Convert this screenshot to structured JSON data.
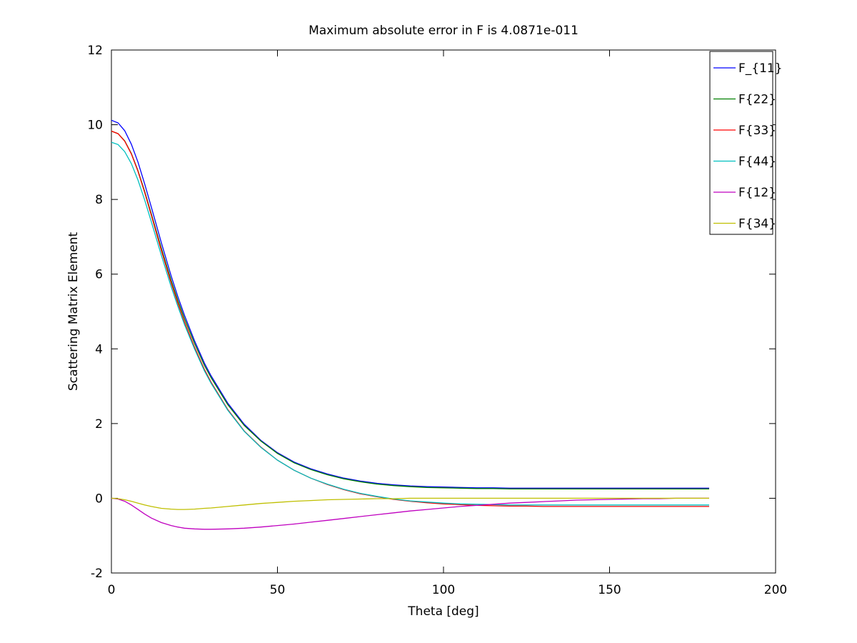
{
  "chart_data": {
    "type": "line",
    "title": "Maximum absolute error in F is 4.0871e-011",
    "xlabel": "Theta [deg]",
    "ylabel": "Scattering Matrix Element",
    "xlim": [
      0,
      200
    ],
    "ylim": [
      -2,
      12
    ],
    "xticks": [
      0,
      50,
      100,
      150,
      200
    ],
    "yticks": [
      -2,
      0,
      2,
      4,
      6,
      8,
      10,
      12
    ],
    "grid": false,
    "legend_position": "top-right",
    "x": [
      0,
      2,
      4,
      6,
      8,
      10,
      12,
      15,
      18,
      20,
      22,
      25,
      28,
      30,
      35,
      40,
      45,
      50,
      55,
      60,
      65,
      70,
      75,
      80,
      85,
      90,
      95,
      100,
      105,
      110,
      115,
      120,
      125,
      130,
      135,
      140,
      145,
      150,
      155,
      160,
      165,
      170,
      175,
      180
    ],
    "series": [
      {
        "name": "F_{11}",
        "color": "#0000ff",
        "values": [
          10.12,
          10.05,
          9.84,
          9.48,
          9.0,
          8.42,
          7.8,
          6.85,
          5.95,
          5.4,
          4.9,
          4.22,
          3.62,
          3.28,
          2.55,
          1.98,
          1.55,
          1.22,
          0.97,
          0.79,
          0.65,
          0.54,
          0.46,
          0.4,
          0.36,
          0.33,
          0.31,
          0.3,
          0.29,
          0.28,
          0.28,
          0.27,
          0.27,
          0.27,
          0.27,
          0.27,
          0.27,
          0.27,
          0.27,
          0.27,
          0.27,
          0.27,
          0.27,
          0.27
        ]
      },
      {
        "name": "F{22}",
        "color": "#008000",
        "values": [
          9.83,
          9.76,
          9.57,
          9.23,
          8.77,
          8.22,
          7.62,
          6.7,
          5.83,
          5.3,
          4.81,
          4.15,
          3.56,
          3.23,
          2.51,
          1.95,
          1.53,
          1.2,
          0.95,
          0.77,
          0.63,
          0.52,
          0.44,
          0.38,
          0.34,
          0.31,
          0.29,
          0.28,
          0.27,
          0.26,
          0.26,
          0.25,
          0.25,
          0.25,
          0.25,
          0.25,
          0.25,
          0.25,
          0.25,
          0.25,
          0.25,
          0.25,
          0.25,
          0.25
        ]
      },
      {
        "name": "F{33}",
        "color": "#ff0000",
        "values": [
          9.83,
          9.76,
          9.56,
          9.22,
          8.75,
          8.19,
          7.58,
          6.64,
          5.76,
          5.22,
          4.72,
          4.05,
          3.45,
          3.11,
          2.38,
          1.8,
          1.37,
          1.02,
          0.75,
          0.54,
          0.37,
          0.23,
          0.12,
          0.04,
          -0.03,
          -0.08,
          -0.12,
          -0.15,
          -0.17,
          -0.19,
          -0.2,
          -0.21,
          -0.21,
          -0.22,
          -0.22,
          -0.22,
          -0.22,
          -0.22,
          -0.22,
          -0.22,
          -0.22,
          -0.22,
          -0.22,
          -0.22
        ]
      },
      {
        "name": "F{44}",
        "color": "#00bfbf",
        "values": [
          9.53,
          9.47,
          9.28,
          8.96,
          8.52,
          7.99,
          7.41,
          6.51,
          5.66,
          5.14,
          4.65,
          4.0,
          3.41,
          3.08,
          2.36,
          1.79,
          1.36,
          1.02,
          0.75,
          0.54,
          0.38,
          0.24,
          0.13,
          0.05,
          -0.02,
          -0.07,
          -0.1,
          -0.13,
          -0.15,
          -0.16,
          -0.17,
          -0.18,
          -0.18,
          -0.18,
          -0.18,
          -0.18,
          -0.18,
          -0.18,
          -0.18,
          -0.18,
          -0.18,
          -0.18,
          -0.18,
          -0.18
        ]
      },
      {
        "name": "F{12}",
        "color": "#bf00bf",
        "values": [
          0.0,
          -0.02,
          -0.08,
          -0.18,
          -0.3,
          -0.42,
          -0.53,
          -0.65,
          -0.73,
          -0.77,
          -0.8,
          -0.82,
          -0.83,
          -0.83,
          -0.82,
          -0.8,
          -0.77,
          -0.73,
          -0.69,
          -0.64,
          -0.59,
          -0.54,
          -0.49,
          -0.44,
          -0.39,
          -0.34,
          -0.3,
          -0.26,
          -0.22,
          -0.19,
          -0.16,
          -0.13,
          -0.11,
          -0.09,
          -0.07,
          -0.05,
          -0.04,
          -0.03,
          -0.02,
          -0.01,
          -0.01,
          0.0,
          0.0,
          0.0
        ]
      },
      {
        "name": "F{34}",
        "color": "#bfbf00",
        "values": [
          0.0,
          -0.01,
          -0.04,
          -0.08,
          -0.13,
          -0.18,
          -0.22,
          -0.27,
          -0.29,
          -0.3,
          -0.3,
          -0.29,
          -0.27,
          -0.26,
          -0.22,
          -0.18,
          -0.14,
          -0.11,
          -0.08,
          -0.06,
          -0.04,
          -0.03,
          -0.02,
          -0.01,
          -0.01,
          0.0,
          0.0,
          0.0,
          0.0,
          0.0,
          0.0,
          0.0,
          0.0,
          0.0,
          0.0,
          0.0,
          0.0,
          0.0,
          0.0,
          0.0,
          0.0,
          0.0,
          0.0,
          0.0
        ]
      }
    ]
  }
}
